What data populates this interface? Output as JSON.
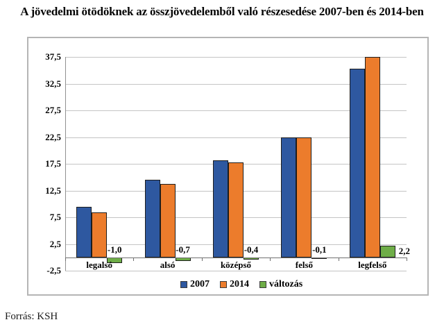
{
  "source": "Forrás: KSH",
  "colors": {
    "bar_2007": "#2E58A0",
    "bar_2014": "#EC7C2C",
    "bar_change": "#6EAD47",
    "gridline": "#c4c4c4",
    "axis": "#909090",
    "bar_border": "#1d1d1d",
    "frame_border": "#b5b5b5"
  },
  "chart_data": {
    "type": "bar",
    "title": "A jövedelmi ötödöknek az összjövedelemből való részesedése 2007-ben és 2014-ben",
    "categories": [
      "legalsó",
      "alsó",
      "középső",
      "felső",
      "legfelső"
    ],
    "series": [
      {
        "name": "2007",
        "color": "#2E58A0",
        "values": [
          9.5,
          14.5,
          18.2,
          22.5,
          35.3
        ]
      },
      {
        "name": "2014",
        "color": "#EC7C2C",
        "values": [
          8.5,
          13.8,
          17.8,
          22.4,
          37.5
        ]
      },
      {
        "name": "változás",
        "color": "#6EAD47",
        "values": [
          -1.0,
          -0.7,
          -0.4,
          -0.1,
          2.2
        ],
        "data_labels": [
          "-1,0",
          "-0,7",
          "-0,4",
          "-0,1",
          "2,2"
        ]
      }
    ],
    "xlabel": "",
    "ylabel": "",
    "ylim": [
      -2.5,
      37.5
    ],
    "ytick_step": 5,
    "ytick_labels": [
      "37,5",
      "32,5",
      "27,5",
      "22,5",
      "17,5",
      "12,5",
      "7,5",
      "2,5",
      "-2,5"
    ],
    "grid": true,
    "legend_position": "bottom"
  }
}
